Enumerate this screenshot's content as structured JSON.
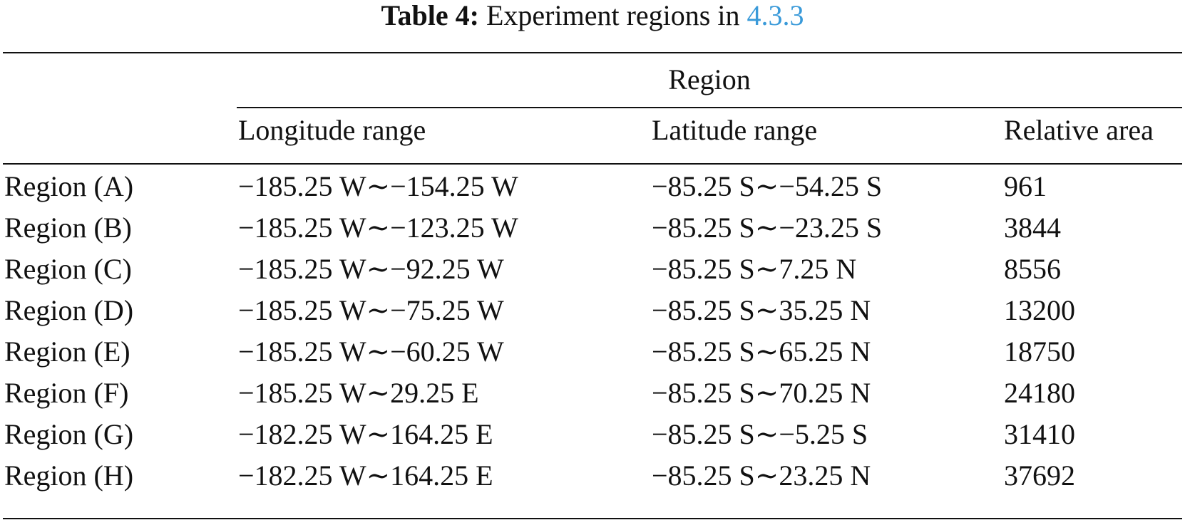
{
  "caption": {
    "label": "Table 4:",
    "text": "Experiment regions in",
    "ref": "4.3.3"
  },
  "table": {
    "group_header": "Region",
    "columns": [
      "",
      "Longitude range",
      "Latitude range",
      "Relative area"
    ],
    "rows": [
      [
        "Region (A)",
        "−185.25 W∼−154.25 W",
        "−85.25 S∼−54.25 S",
        "961"
      ],
      [
        "Region (B)",
        "−185.25 W∼−123.25 W",
        "−85.25 S∼−23.25 S",
        "3844"
      ],
      [
        "Region (C)",
        "−185.25 W∼−92.25 W",
        "−85.25 S∼7.25 N",
        "8556"
      ],
      [
        "Region (D)",
        "−185.25 W∼−75.25 W",
        "−85.25 S∼35.25 N",
        "13200"
      ],
      [
        "Region (E)",
        "−185.25 W∼−60.25 W",
        "−85.25 S∼65.25 N",
        "18750"
      ],
      [
        "Region (F)",
        "−185.25 W∼29.25 E",
        "−85.25 S∼70.25 N",
        "24180"
      ],
      [
        "Region (G)",
        "−182.25 W∼164.25 E",
        "−85.25 S∼−5.25 S",
        "31410"
      ],
      [
        "Region (H)",
        "−182.25 W∼164.25 E",
        "−85.25 S∼23.25 N",
        "37692"
      ]
    ]
  }
}
